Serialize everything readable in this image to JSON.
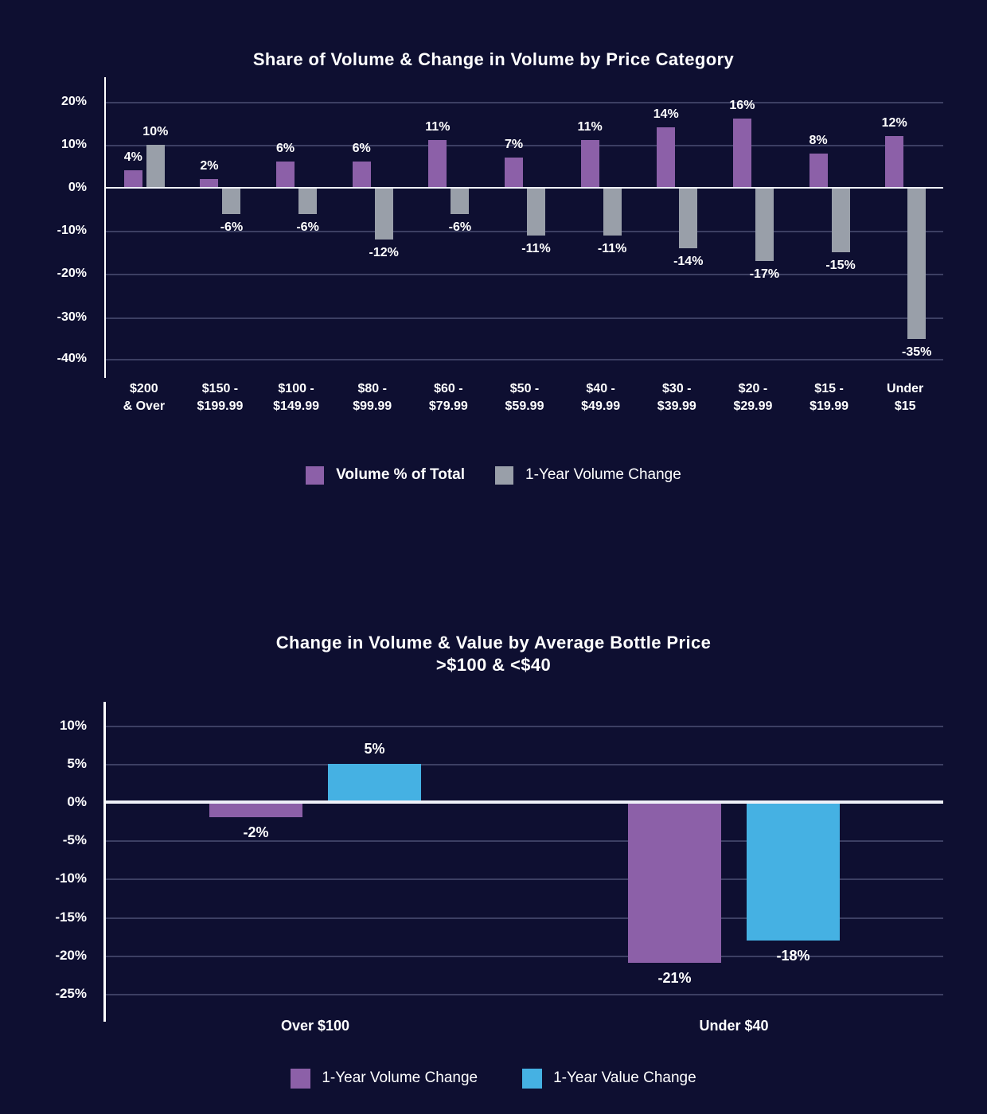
{
  "colors": {
    "background": "#0e0f31",
    "purple": "#8c60a8",
    "gray": "#999fa9",
    "blue": "#45b1e3",
    "gridline": "#3c3f63",
    "zero_line": "#ffffff",
    "text": "#ffffff"
  },
  "chart_data": [
    {
      "type": "bar",
      "title": "Share of Volume & Change in Volume by Price Category",
      "categories": [
        "$200\n& Over",
        "$150 -\n$199.99",
        "$100 -\n$149.99",
        "$80 -\n$99.99",
        "$60 -\n$79.99",
        "$50 -\n$59.99",
        "$40 -\n$49.99",
        "$30 -\n$39.99",
        "$20 -\n$29.99",
        "$15 -\n$19.99",
        "Under\n$15"
      ],
      "series": [
        {
          "name": "Volume % of Total",
          "color_key": "purple",
          "values": [
            4,
            2,
            6,
            6,
            11,
            7,
            11,
            14,
            16,
            8,
            12
          ],
          "labels": [
            "4%",
            "2%",
            "6%",
            "6%",
            "11%",
            "7%",
            "11%",
            "14%",
            "16%",
            "8%",
            "12%"
          ]
        },
        {
          "name": "1-Year Volume Change",
          "color_key": "gray",
          "values": [
            10,
            -6,
            -6,
            -12,
            -6,
            -11,
            -11,
            -14,
            -17,
            -15,
            -35
          ],
          "labels": [
            "10%",
            "-6%",
            "-6%",
            "-12%",
            "-6%",
            "-11%",
            "-11%",
            "-14%",
            "-17%",
            "-15%",
            "-35%"
          ]
        }
      ],
      "yticks": [
        20,
        10,
        0,
        -10,
        -20,
        -30,
        -40
      ],
      "ytick_labels": [
        "20%",
        "10%",
        "0%",
        "-10%",
        "-20%",
        "-30%",
        "-40%"
      ],
      "ylim": [
        25.3,
        -40.0
      ],
      "grid": true,
      "legend_position": "bottom"
    },
    {
      "type": "bar",
      "title": "Change in Volume & Value by Average Bottle Price",
      "subtitle": ">$100 & <$40",
      "categories": [
        "Over $100",
        "Under $40"
      ],
      "series": [
        {
          "name": "1-Year Volume Change",
          "color_key": "purple",
          "values": [
            -2,
            -21
          ],
          "labels": [
            "-2%",
            "-21%"
          ]
        },
        {
          "name": "1-Year Value Change",
          "color_key": "blue",
          "values": [
            5,
            -18
          ],
          "labels": [
            "5%",
            "-18%"
          ]
        }
      ],
      "yticks": [
        10,
        5,
        0,
        -5,
        -10,
        -15,
        -20,
        -25
      ],
      "ytick_labels": [
        "10%",
        "5%",
        "0%",
        "-5%",
        "-10%",
        "-15%",
        "-20%",
        "-25%"
      ],
      "ylim": [
        12.9,
        -28.2
      ],
      "grid": true,
      "legend_position": "bottom"
    }
  ]
}
